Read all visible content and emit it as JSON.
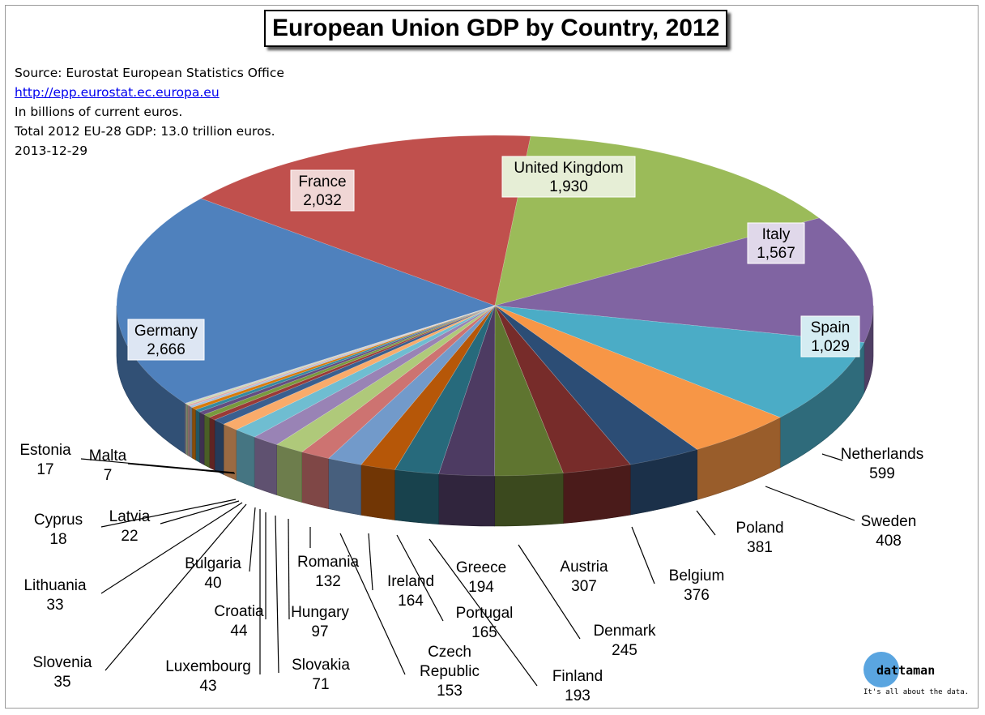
{
  "title": "European Union GDP by Country, 2012",
  "notes": {
    "source": "Source: Eurostat European Statistics Office",
    "url": "http://epp.eurostat.ec.europa.eu",
    "units": "In billions of current euros.",
    "total": "Total 2012 EU-28 GDP: 13.0 trillion euros.",
    "date": "2013-12-29"
  },
  "logo": {
    "name": "dattaman",
    "tagline": "It's all about the data."
  },
  "chart_data": {
    "type": "pie",
    "title": "European Union GDP by Country, 2012",
    "unit": "billions of current euros",
    "slices": [
      {
        "label": "Germany",
        "value": 2666,
        "value_label": "2,666",
        "color": "#4f81bd"
      },
      {
        "label": "France",
        "value": 2032,
        "value_label": "2,032",
        "color": "#c0504d"
      },
      {
        "label": "United Kingdom",
        "value": 1930,
        "value_label": "1,930",
        "color": "#9bbb59"
      },
      {
        "label": "Italy",
        "value": 1567,
        "value_label": "1,567",
        "color": "#8064a2"
      },
      {
        "label": "Spain",
        "value": 1029,
        "value_label": "1,029",
        "color": "#4bacc6"
      },
      {
        "label": "Netherlands",
        "value": 599,
        "value_label": "599",
        "color": "#f79646"
      },
      {
        "label": "Sweden",
        "value": 408,
        "value_label": "408",
        "color": "#2c4d75"
      },
      {
        "label": "Poland",
        "value": 381,
        "value_label": "381",
        "color": "#772c2a"
      },
      {
        "label": "Belgium",
        "value": 376,
        "value_label": "376",
        "color": "#5f7530"
      },
      {
        "label": "Austria",
        "value": 307,
        "value_label": "307",
        "color": "#4d3b62"
      },
      {
        "label": "Denmark",
        "value": 245,
        "value_label": "245",
        "color": "#276a7c"
      },
      {
        "label": "Greece",
        "value": 194,
        "value_label": "194",
        "color": "#b65708"
      },
      {
        "label": "Finland",
        "value": 193,
        "value_label": "193",
        "color": "#729aca"
      },
      {
        "label": "Portugal",
        "value": 165,
        "value_label": "165",
        "color": "#cd7371"
      },
      {
        "label": "Ireland",
        "value": 164,
        "value_label": "164",
        "color": "#afc97a"
      },
      {
        "label": "Czech Republic",
        "value": 153,
        "value_label": "153",
        "color": "#9983b5"
      },
      {
        "label": "Romania",
        "value": 132,
        "value_label": "132",
        "color": "#6fbdd1"
      },
      {
        "label": "Hungary",
        "value": 97,
        "value_label": "97",
        "color": "#f9ab6b"
      },
      {
        "label": "Slovakia",
        "value": 71,
        "value_label": "71",
        "color": "#3a5f8f"
      },
      {
        "label": "Luxembourg",
        "value": 43,
        "value_label": "43",
        "color": "#9a3a37"
      },
      {
        "label": "Croatia",
        "value": 44,
        "value_label": "44",
        "color": "#789a3e"
      },
      {
        "label": "Bulgaria",
        "value": 40,
        "value_label": "40",
        "color": "#644d81"
      },
      {
        "label": "Slovenia",
        "value": 35,
        "value_label": "35",
        "color": "#358aa0"
      },
      {
        "label": "Lithuania",
        "value": 33,
        "value_label": "33",
        "color": "#d87a0b"
      },
      {
        "label": "Latvia",
        "value": 22,
        "value_label": "22",
        "color": "#a7bfde"
      },
      {
        "label": "Cyprus",
        "value": 18,
        "value_label": "18",
        "color": "#dca9a8"
      },
      {
        "label": "Estonia",
        "value": 17,
        "value_label": "17",
        "color": "#c9dbab"
      },
      {
        "label": "Malta",
        "value": 7,
        "value_label": "7",
        "color": "#bdaed0"
      }
    ]
  }
}
